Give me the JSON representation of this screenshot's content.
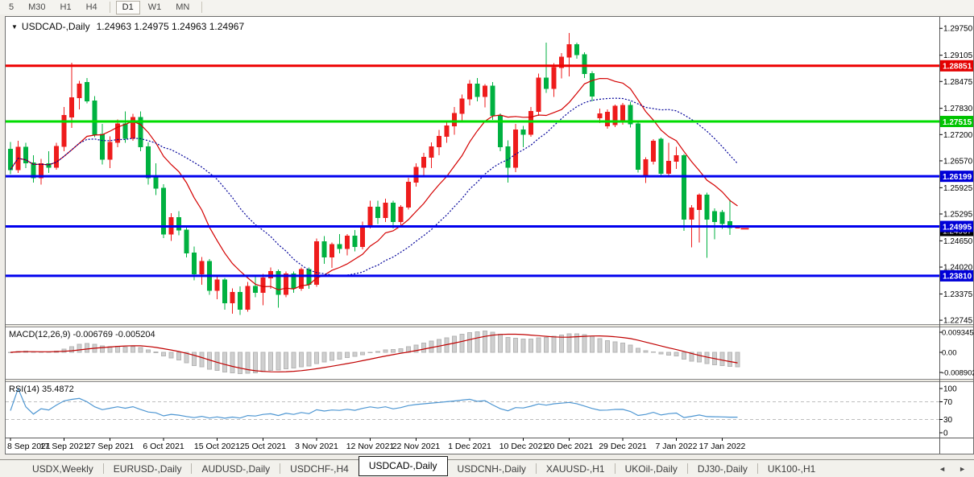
{
  "toolbar": {
    "items": [
      "5",
      "M30",
      "H1",
      "H4",
      "|",
      "D1",
      "W1",
      "MN",
      "|"
    ],
    "active": "D1"
  },
  "chart": {
    "title_symbol": "USDCAD-,Daily",
    "title_ohlc": "1.24963 1.24975 1.24963 1.24967",
    "macd_label": "MACD(12,26,9) -0.006769 -0.005204",
    "rsi_label": "RSI(14) 35.4872"
  },
  "price_axis": {
    "ticks": [
      "1.29750",
      "1.29105",
      "1.28475",
      "1.27830",
      "1.27200",
      "1.26570",
      "1.25925",
      "1.25295",
      "1.24650",
      "1.24020",
      "1.23375",
      "1.22745"
    ],
    "badges": [
      {
        "label": "1.28851",
        "price": 1.28851,
        "color": "#e40000"
      },
      {
        "label": "1.27515",
        "price": 1.27515,
        "color": "#00c400"
      },
      {
        "label": "1.26199",
        "price": 1.26199,
        "color": "#0000d8"
      },
      {
        "label": "1.24995",
        "price": 1.24995,
        "color": "#0000d8"
      },
      {
        "label": "1.23810",
        "price": 1.2381,
        "color": "#0000d8"
      }
    ],
    "current": {
      "label": "1.24967",
      "price": 1.24967,
      "color": "#000000"
    }
  },
  "macd_axis": [
    "0.009345",
    "0.00",
    "-0.008902"
  ],
  "rsi_axis": [
    "100",
    "70",
    "30",
    "0"
  ],
  "date_axis": {
    "labels": [
      "8 Sep 2021",
      "17 Sep 2021",
      "27 Sep 2021",
      "6 Oct 2021",
      "15 Oct 2021",
      "25 Oct 2021",
      "3 Nov 2021",
      "12 Nov 2021",
      "22 Nov 2021",
      "1 Dec 2021",
      "10 Dec 2021",
      "20 Dec 2021",
      "29 Dec 2021",
      "7 Jan 2022",
      "17 Jan 2022"
    ],
    "tick_indices": [
      0,
      7,
      13,
      20,
      27,
      33,
      40,
      47,
      53,
      60,
      67,
      73,
      80,
      87,
      93
    ]
  },
  "tabs": {
    "items": [
      "USDX,Weekly",
      "EURUSD-,Daily",
      "AUDUSD-,Daily",
      "USDCHF-,H4",
      "USDCAD-,Daily",
      "USDCNH-,Daily",
      "XAUUSD-,H1",
      "UKOil-,Daily",
      "DJ30-,Daily",
      "UK100-,H1"
    ],
    "active_index": 4,
    "scroll_left": "◄",
    "scroll_right": "►"
  },
  "colors": {
    "candle_up": "#ee1c1c",
    "candle_down": "#00b140",
    "ma_fast": "#d40000",
    "ma_slow": "#000099",
    "hline_red": "#ee0000",
    "hline_green": "#00dc00",
    "hline_blue": "#0000ee",
    "macd_hist": "#cfcfcf",
    "macd_hist_border": "#b5b5b5",
    "macd_signal": "#c00000",
    "rsi_line": "#4d96d2",
    "level_dash": "#bdbdbd",
    "ask_dash": "#ee0000"
  },
  "chart_data": {
    "type": "candlestick",
    "symbol": "USDCAD-,Daily",
    "title": "USDCAD-,Daily 1.24963 1.24975 1.24963 1.24967",
    "y_range": [
      1.2235,
      1.301
    ],
    "grid": false,
    "ma_fast_period": 10,
    "ma_slow_period": 21,
    "macd_params": [
      12,
      26,
      9
    ],
    "macd_value": -0.006769,
    "macd_signal_value": -0.005204,
    "macd_axis_range": [
      -0.008902,
      0.009345
    ],
    "rsi_period": 14,
    "rsi_value": 35.4872,
    "rsi_levels": [
      70,
      30
    ],
    "hlines": [
      {
        "price": 1.28851,
        "color": "#ee0000"
      },
      {
        "price": 1.27515,
        "color": "#00dc00"
      },
      {
        "price": 1.26199,
        "color": "#0000ee"
      },
      {
        "price": 1.24995,
        "color": "#0000ee"
      },
      {
        "price": 1.2381,
        "color": "#0000ee"
      }
    ],
    "candles": [
      [
        1.2685,
        1.2702,
        1.2625,
        1.2636
      ],
      [
        1.2636,
        1.2705,
        1.2628,
        1.269
      ],
      [
        1.269,
        1.27,
        1.264,
        1.2652
      ],
      [
        1.2652,
        1.267,
        1.2605,
        1.2616
      ],
      [
        1.2616,
        1.2662,
        1.26,
        1.265
      ],
      [
        1.265,
        1.268,
        1.2628,
        1.2641
      ],
      [
        1.2641,
        1.27,
        1.2636,
        1.2692
      ],
      [
        1.2692,
        1.2786,
        1.268,
        1.2766
      ],
      [
        1.2762,
        1.2892,
        1.2736,
        1.2808
      ],
      [
        1.2808,
        1.2849,
        1.278,
        1.2841
      ],
      [
        1.2845,
        1.2856,
        1.2795,
        1.2801
      ],
      [
        1.2801,
        1.2812,
        1.2714,
        1.2721
      ],
      [
        1.2721,
        1.2746,
        1.2648,
        1.2661
      ],
      [
        1.2661,
        1.2716,
        1.264,
        1.2701
      ],
      [
        1.2701,
        1.2756,
        1.269,
        1.2746
      ],
      [
        1.2746,
        1.2776,
        1.27,
        1.2711
      ],
      [
        1.2711,
        1.277,
        1.2705,
        1.2761
      ],
      [
        1.2761,
        1.2776,
        1.268,
        1.2691
      ],
      [
        1.2691,
        1.2701,
        1.26,
        1.2616
      ],
      [
        1.2616,
        1.2651,
        1.2575,
        1.2591
      ],
      [
        1.2591,
        1.2601,
        1.2472,
        1.2481
      ],
      [
        1.2481,
        1.2531,
        1.2465,
        1.2521
      ],
      [
        1.2521,
        1.2536,
        1.2478,
        1.2491
      ],
      [
        1.2491,
        1.2501,
        1.2425,
        1.2436
      ],
      [
        1.2436,
        1.2451,
        1.237,
        1.2386
      ],
      [
        1.2386,
        1.2426,
        1.236,
        1.2416
      ],
      [
        1.2416,
        1.2421,
        1.2335,
        1.2346
      ],
      [
        1.2346,
        1.2381,
        1.2325,
        1.2371
      ],
      [
        1.2371,
        1.2376,
        1.23,
        1.2316
      ],
      [
        1.2316,
        1.2351,
        1.229,
        1.2341
      ],
      [
        1.2341,
        1.2356,
        1.2287,
        1.2301
      ],
      [
        1.2301,
        1.2366,
        1.2295,
        1.2356
      ],
      [
        1.2356,
        1.2381,
        1.233,
        1.2341
      ],
      [
        1.2341,
        1.2386,
        1.231,
        1.2376
      ],
      [
        1.2376,
        1.2401,
        1.235,
        1.2391
      ],
      [
        1.2391,
        1.2396,
        1.2305,
        1.2336
      ],
      [
        1.2336,
        1.2391,
        1.233,
        1.2386
      ],
      [
        1.2386,
        1.2391,
        1.234,
        1.2351
      ],
      [
        1.2351,
        1.2401,
        1.2345,
        1.2396
      ],
      [
        1.2396,
        1.2401,
        1.235,
        1.2361
      ],
      [
        1.2361,
        1.2471,
        1.2355,
        1.2463
      ],
      [
        1.2463,
        1.2476,
        1.241,
        1.2426
      ],
      [
        1.2426,
        1.2461,
        1.24,
        1.2456
      ],
      [
        1.2456,
        1.2481,
        1.2435,
        1.2446
      ],
      [
        1.2446,
        1.2481,
        1.243,
        1.2476
      ],
      [
        1.2476,
        1.2491,
        1.244,
        1.2451
      ],
      [
        1.2451,
        1.2511,
        1.2445,
        1.2501
      ],
      [
        1.2501,
        1.2561,
        1.2495,
        1.2546
      ],
      [
        1.2546,
        1.2561,
        1.2505,
        1.2521
      ],
      [
        1.2521,
        1.2566,
        1.251,
        1.2556
      ],
      [
        1.2556,
        1.2561,
        1.2495,
        1.2511
      ],
      [
        1.2511,
        1.2551,
        1.25,
        1.2546
      ],
      [
        1.2546,
        1.2616,
        1.254,
        1.2606
      ],
      [
        1.2606,
        1.2651,
        1.2595,
        1.2641
      ],
      [
        1.2641,
        1.2676,
        1.262,
        1.2666
      ],
      [
        1.2666,
        1.2701,
        1.264,
        1.2691
      ],
      [
        1.2691,
        1.2731,
        1.267,
        1.2716
      ],
      [
        1.2716,
        1.2751,
        1.27,
        1.2741
      ],
      [
        1.2741,
        1.2786,
        1.272,
        1.2771
      ],
      [
        1.2771,
        1.2816,
        1.275,
        1.2806
      ],
      [
        1.2806,
        1.2851,
        1.279,
        1.2841
      ],
      [
        1.2841,
        1.2856,
        1.28,
        1.2811
      ],
      [
        1.2811,
        1.2841,
        1.2785,
        1.2836
      ],
      [
        1.2836,
        1.2846,
        1.2755,
        1.2766
      ],
      [
        1.2766,
        1.2771,
        1.268,
        1.2691
      ],
      [
        1.2691,
        1.2706,
        1.2605,
        1.2641
      ],
      [
        1.2641,
        1.2746,
        1.263,
        1.2731
      ],
      [
        1.2731,
        1.2741,
        1.269,
        1.2721
      ],
      [
        1.2721,
        1.2786,
        1.2715,
        1.2776
      ],
      [
        1.2776,
        1.2866,
        1.2765,
        1.2856
      ],
      [
        1.2856,
        1.2941,
        1.282,
        1.2831
      ],
      [
        1.2831,
        1.2891,
        1.281,
        1.2881
      ],
      [
        1.2881,
        1.2916,
        1.2855,
        1.2906
      ],
      [
        1.2906,
        1.2964,
        1.286,
        1.2936
      ],
      [
        1.2936,
        1.2941,
        1.2902,
        1.2912
      ],
      [
        1.2912,
        1.2918,
        1.2856,
        1.2866
      ],
      [
        1.2866,
        1.2872,
        1.28,
        1.2812
      ],
      [
        1.276,
        1.2782,
        1.2748,
        1.277
      ],
      [
        1.2741,
        1.278,
        1.2734,
        1.2774
      ],
      [
        1.2744,
        1.2792,
        1.2738,
        1.2788
      ],
      [
        1.2752,
        1.2796,
        1.2744,
        1.279
      ],
      [
        1.279,
        1.2799,
        1.2737,
        1.2746
      ],
      [
        1.2746,
        1.2752,
        1.2629,
        1.2637
      ],
      [
        1.262,
        1.2666,
        1.2604,
        1.266
      ],
      [
        1.2656,
        1.2709,
        1.2648,
        1.2704
      ],
      [
        1.2709,
        1.2713,
        1.2619,
        1.2627
      ],
      [
        1.2627,
        1.27,
        1.2619,
        1.2656
      ],
      [
        1.2656,
        1.2691,
        1.2638,
        1.2669
      ],
      [
        1.2669,
        1.2673,
        1.2489,
        1.2517
      ],
      [
        1.2517,
        1.2551,
        1.2449,
        1.2544
      ],
      [
        1.254,
        1.2579,
        1.2461,
        1.2575
      ],
      [
        1.2575,
        1.2581,
        1.2424,
        1.2517
      ],
      [
        1.2535,
        1.2543,
        1.2469,
        1.2511
      ],
      [
        1.2533,
        1.2539,
        1.2494,
        1.2506
      ],
      [
        1.2511,
        1.2564,
        1.2479,
        1.2497
      ],
      [
        1.24963,
        1.24975,
        1.24963,
        1.24967
      ]
    ]
  }
}
